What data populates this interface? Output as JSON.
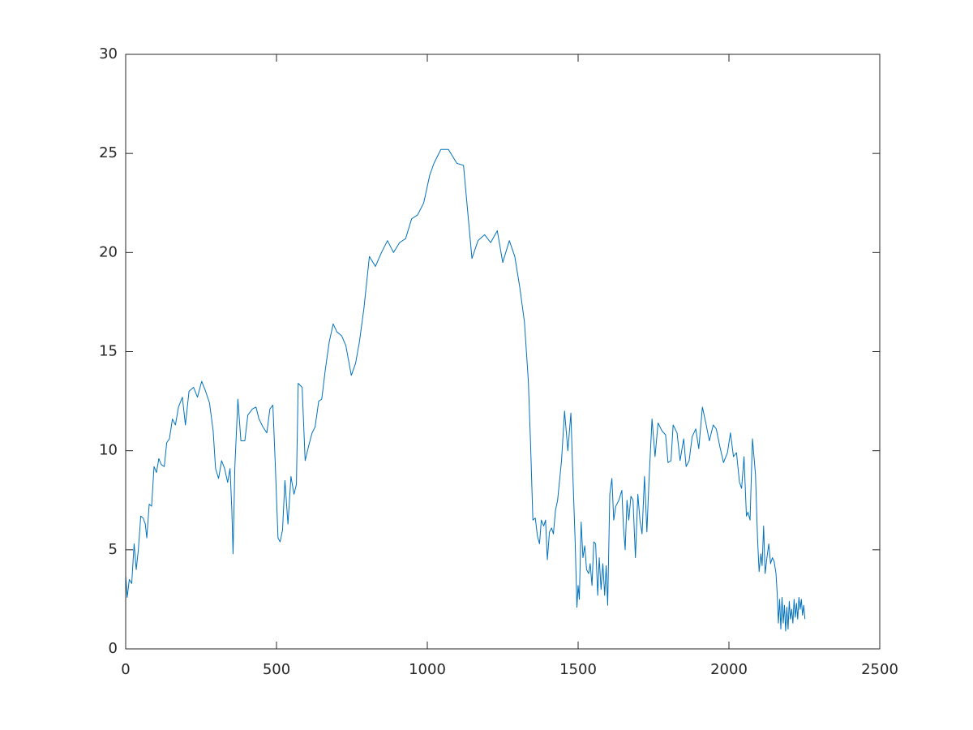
{
  "chart_data": {
    "type": "line",
    "xlim": [
      0,
      2500
    ],
    "xticks": [
      0,
      500,
      1000,
      1500,
      2000,
      2500
    ],
    "ylim": [
      0,
      30
    ],
    "yticks": [
      0,
      5,
      10,
      15,
      20,
      25,
      30
    ],
    "grid": false,
    "box": true,
    "series": [
      {
        "color": "#0072bd",
        "x": [
          0,
          5,
          12,
          20,
          28,
          35,
          42,
          50,
          58,
          65,
          70,
          78,
          86,
          94,
          102,
          110,
          118,
          128,
          136,
          145,
          155,
          165,
          175,
          188,
          198,
          210,
          225,
          238,
          252,
          265,
          278,
          290,
          298,
          308,
          318,
          328,
          338,
          346,
          352,
          356,
          362,
          372,
          382,
          395,
          405,
          420,
          432,
          442,
          455,
          468,
          478,
          488,
          496,
          505,
          512,
          520,
          528,
          538,
          548,
          558,
          566,
          572,
          585,
          595,
          606,
          618,
          628,
          640,
          650,
          662,
          675,
          688,
          700,
          716,
          730,
          748,
          762,
          775,
          790,
          808,
          828,
          848,
          868,
          888,
          908,
          928,
          948,
          968,
          988,
          1008,
          1022,
          1045,
          1070,
          1098,
          1120,
          1148,
          1168,
          1190,
          1210,
          1232,
          1250,
          1272,
          1290,
          1306,
          1322,
          1335,
          1342,
          1350,
          1358,
          1365,
          1372,
          1378,
          1386,
          1392,
          1398,
          1405,
          1412,
          1418,
          1425,
          1432,
          1445,
          1455,
          1466,
          1476,
          1482,
          1490,
          1496,
          1500,
          1504,
          1510,
          1516,
          1522,
          1528,
          1535,
          1540,
          1546,
          1552,
          1558,
          1565,
          1570,
          1576,
          1582,
          1588,
          1593,
          1598,
          1605,
          1612,
          1618,
          1625,
          1635,
          1645,
          1650,
          1656,
          1662,
          1668,
          1675,
          1682,
          1690,
          1698,
          1705,
          1712,
          1720,
          1728,
          1735,
          1745,
          1755,
          1765,
          1778,
          1790,
          1798,
          1808,
          1815,
          1828,
          1838,
          1850,
          1858,
          1868,
          1878,
          1890,
          1900,
          1912,
          1922,
          1935,
          1948,
          1958,
          1970,
          1982,
          1995,
          2005,
          2015,
          2025,
          2035,
          2042,
          2050,
          2058,
          2063,
          2070,
          2078,
          2088,
          2095,
          2100,
          2106,
          2110,
          2115,
          2120,
          2126,
          2132,
          2138,
          2144,
          2150,
          2156,
          2160,
          2164,
          2168,
          2172,
          2176,
          2180,
          2184,
          2188,
          2192,
          2196,
          2200,
          2204,
          2208,
          2212,
          2216,
          2220,
          2224,
          2228,
          2232,
          2236,
          2240,
          2244,
          2248,
          2252
        ],
        "values": [
          3.7,
          2.6,
          3.5,
          3.3,
          5.3,
          4.0,
          5.0,
          6.7,
          6.6,
          6.3,
          5.6,
          7.3,
          7.2,
          9.2,
          8.9,
          9.6,
          9.3,
          9.2,
          10.4,
          10.6,
          11.6,
          11.3,
          12.2,
          12.7,
          11.3,
          13.0,
          13.2,
          12.7,
          13.5,
          13.0,
          12.4,
          11.0,
          9.1,
          8.6,
          9.5,
          9.1,
          8.4,
          9.1,
          7.0,
          4.8,
          9.2,
          12.6,
          10.5,
          10.5,
          11.8,
          12.1,
          12.2,
          11.6,
          11.2,
          10.9,
          12.1,
          12.3,
          9.3,
          5.6,
          5.4,
          6.0,
          8.5,
          6.3,
          8.7,
          7.8,
          8.3,
          13.4,
          13.2,
          9.5,
          10.2,
          10.9,
          11.2,
          12.5,
          12.6,
          14.1,
          15.5,
          16.4,
          16.0,
          15.8,
          15.3,
          13.8,
          14.4,
          15.5,
          17.2,
          19.8,
          19.3,
          20.0,
          20.6,
          20.0,
          20.5,
          20.7,
          21.7,
          21.9,
          22.5,
          23.9,
          24.5,
          25.2,
          25.2,
          24.5,
          24.4,
          19.7,
          20.6,
          20.9,
          20.5,
          21.1,
          19.5,
          20.6,
          19.8,
          18.3,
          16.5,
          13.5,
          10.5,
          6.5,
          6.6,
          5.7,
          5.3,
          6.5,
          6.2,
          6.5,
          4.5,
          5.9,
          6.1,
          5.8,
          7.0,
          7.5,
          9.5,
          12.0,
          10.0,
          11.9,
          9.0,
          5.5,
          2.1,
          3.2,
          2.5,
          6.4,
          4.6,
          5.2,
          4.0,
          3.8,
          4.3,
          3.2,
          5.4,
          5.3,
          2.7,
          4.6,
          3.0,
          4.3,
          2.7,
          4.2,
          2.2,
          7.8,
          8.6,
          6.5,
          7.2,
          7.5,
          8.0,
          6.2,
          5.0,
          7.5,
          6.5,
          7.7,
          7.5,
          4.6,
          7.8,
          6.5,
          5.8,
          8.7,
          5.9,
          8.5,
          11.6,
          9.7,
          11.4,
          11.0,
          10.8,
          9.4,
          9.5,
          11.3,
          10.9,
          9.5,
          10.6,
          9.2,
          9.5,
          10.7,
          11.1,
          10.1,
          12.2,
          11.5,
          10.5,
          11.3,
          11.1,
          10.2,
          9.4,
          9.9,
          10.9,
          9.7,
          9.9,
          8.4,
          8.1,
          9.7,
          6.7,
          6.9,
          6.5,
          10.6,
          8.8,
          5.5,
          3.9,
          4.8,
          4.2,
          6.2,
          3.8,
          4.6,
          5.3,
          4.3,
          4.6,
          4.4,
          3.8,
          2.8,
          1.3,
          2.5,
          1.0,
          2.6,
          1.3,
          2.2,
          0.9,
          2.1,
          1.0,
          2.4,
          1.5,
          2.0,
          1.3,
          2.5,
          1.6,
          2.3,
          1.5,
          2.6,
          2.0,
          2.5,
          1.7,
          2.2,
          1.5
        ]
      }
    ]
  }
}
